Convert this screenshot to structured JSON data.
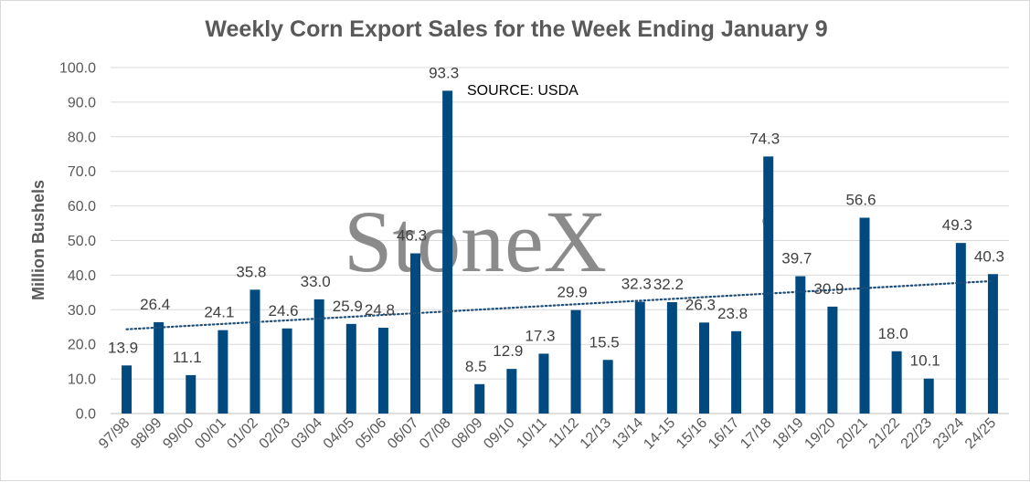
{
  "chart_data": {
    "type": "bar",
    "title": "Weekly Corn Export Sales for the Week Ending January 9",
    "ylabel": "Million Bushels",
    "xlabel": "",
    "ylim": [
      0,
      100
    ],
    "yticks": [
      "0.0",
      "10.0",
      "20.0",
      "30.0",
      "40.0",
      "50.0",
      "60.0",
      "70.0",
      "80.0",
      "90.0",
      "100.0"
    ],
    "grid": true,
    "bar_color": "#004a80",
    "trendline": {
      "type": "linear",
      "style": "dotted",
      "color": "#1f4e79"
    },
    "categories": [
      "97/98",
      "98/99",
      "99/00",
      "00/01",
      "01/02",
      "02/03",
      "03/04",
      "04/05",
      "05/06",
      "06/07",
      "07/08",
      "08/09",
      "09/10",
      "10/11",
      "11/12",
      "12/13",
      "13/14",
      "14-15",
      "15/16",
      "16/17",
      "17/18",
      "18/19",
      "19/20",
      "20/21",
      "21/22",
      "22/23",
      "23/24",
      "24/25"
    ],
    "values": [
      13.9,
      26.4,
      11.1,
      24.1,
      35.8,
      24.6,
      33.0,
      25.9,
      24.8,
      46.3,
      93.3,
      8.5,
      12.9,
      17.3,
      29.9,
      15.5,
      32.3,
      32.2,
      26.3,
      23.8,
      74.3,
      39.7,
      30.9,
      56.6,
      18.0,
      10.1,
      49.3,
      40.3
    ],
    "data_labels": [
      "13.9",
      "26.4",
      "11.1",
      "24.1",
      "35.8",
      "24.6",
      "33.0",
      "25.9",
      "24.8",
      "46.3",
      "93.3",
      "8.5",
      "12.9",
      "17.3",
      "29.9",
      "15.5",
      "32.3",
      "32.2",
      "26.3",
      "23.8",
      "74.3",
      "39.7",
      "30.9",
      "56.6",
      "18.0",
      "10.1",
      "49.3",
      "40.3"
    ],
    "annotation": "SOURCE: USDA"
  },
  "watermark": {
    "text": "StoneX",
    "reg_mark": "®"
  }
}
